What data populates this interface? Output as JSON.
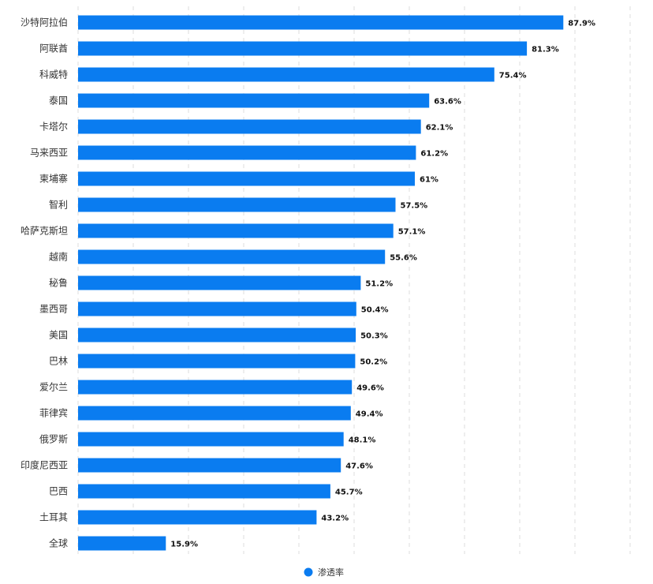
{
  "chart_data": {
    "type": "bar",
    "orientation": "horizontal",
    "categories": [
      "沙特阿拉伯",
      "阿联酋",
      "科威特",
      "泰国",
      "卡塔尔",
      "马来西亚",
      "柬埔寨",
      "智利",
      "哈萨克斯坦",
      "越南",
      "秘鲁",
      "墨西哥",
      "美国",
      "巴林",
      "爱尔兰",
      "菲律宾",
      "俄罗斯",
      "印度尼西亚",
      "巴西",
      "土耳其",
      "全球"
    ],
    "series": [
      {
        "name": "渗透率",
        "values": [
          87.9,
          81.3,
          75.4,
          63.6,
          62.1,
          61.2,
          61,
          57.5,
          57.1,
          55.6,
          51.2,
          50.4,
          50.3,
          50.2,
          49.6,
          49.4,
          48.1,
          47.6,
          45.7,
          43.2,
          15.9
        ],
        "value_labels": [
          "87.9%",
          "81.3%",
          "75.4%",
          "63.6%",
          "62.1%",
          "61.2%",
          "61%",
          "57.5%",
          "57.1%",
          "55.6%",
          "51.2%",
          "50.4%",
          "50.3%",
          "50.2%",
          "49.6%",
          "49.4%",
          "48.1%",
          "47.6%",
          "45.7%",
          "43.2%",
          "15.9%"
        ],
        "color": "#0a7cf0"
      }
    ],
    "xlim": [
      0,
      100
    ],
    "grid": true,
    "legend_position": "bottom-center"
  }
}
